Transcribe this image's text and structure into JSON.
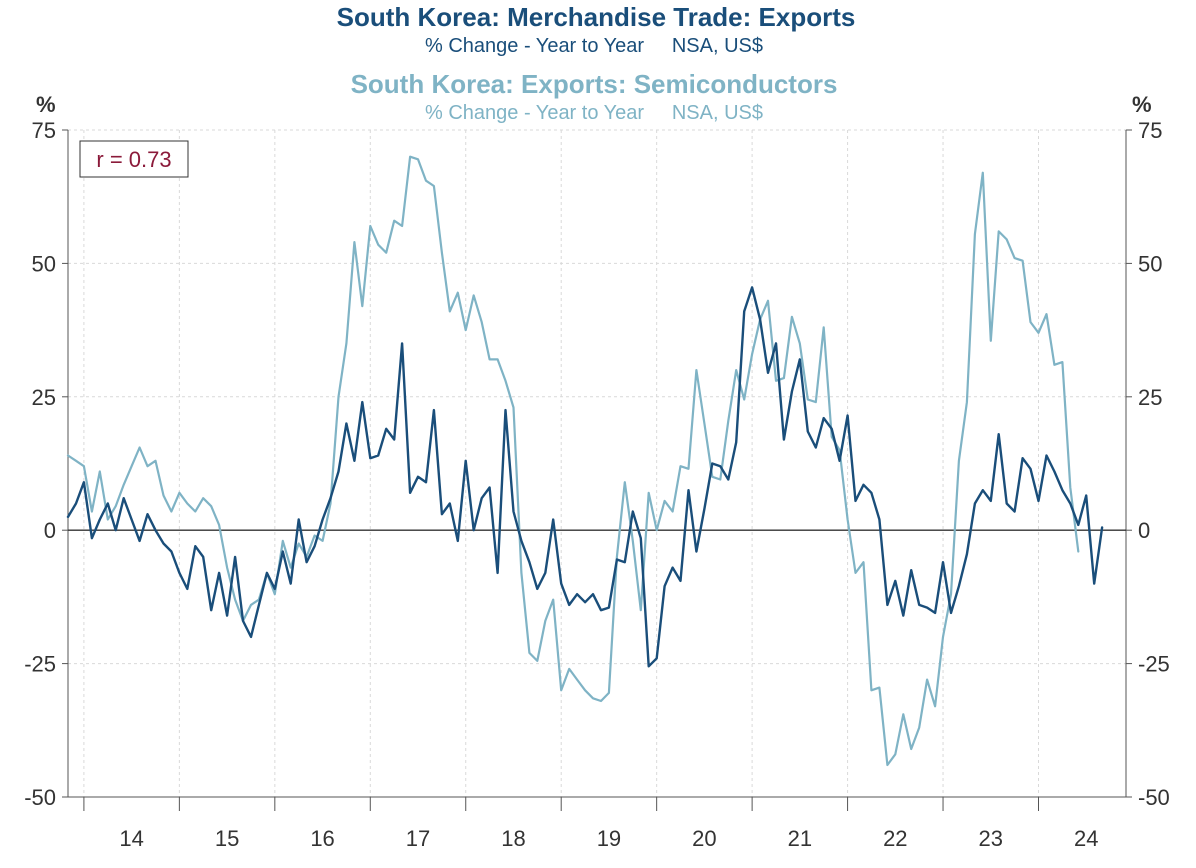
{
  "titles": {
    "main": "South Korea: Merchandise Trade: Exports",
    "main_sub": "% Change - Year to Year     NSA, US$",
    "second": "South Korea: Exports: Semiconductors",
    "second_sub": "% Change - Year to Year     NSA, US$"
  },
  "axes": {
    "left_unit": "%",
    "right_unit": "%"
  },
  "annotation": "r = 0.73",
  "colors": {
    "exports": "#1a4e7a",
    "semiconductors": "#7fb3c5",
    "annotation": "#8b1a3a",
    "zero_line": "#333333",
    "grid": "#d9d9d9"
  },
  "chart_data": {
    "type": "line",
    "x_start": "2013-11",
    "x_frequency": "monthly",
    "xlim": [
      "2013-11",
      "2024-12"
    ],
    "ylim": [
      -50,
      75
    ],
    "yticks": [
      75,
      50,
      25,
      0,
      -25,
      -50
    ],
    "ytick_labels": [
      "75",
      "50",
      "25",
      "0",
      "-25",
      "-50"
    ],
    "xtick_labels": [
      "14",
      "15",
      "16",
      "17",
      "18",
      "19",
      "20",
      "21",
      "22",
      "23",
      "24"
    ],
    "grid": true,
    "series": [
      {
        "name": "South Korea: Merchandise Trade: Exports",
        "axis": "left",
        "color": "#1a4e7a",
        "values": [
          2.5,
          5,
          9,
          -1.5,
          2,
          5,
          0,
          6,
          2,
          -2,
          3,
          0,
          -2.5,
          -4,
          -8,
          -11,
          -3,
          -5,
          -15,
          -8,
          -16,
          -5,
          -17,
          -20,
          -14,
          -8,
          -11,
          -4,
          -10,
          2,
          -6,
          -3,
          2,
          6,
          11,
          20,
          13,
          24,
          13.5,
          14,
          19,
          17,
          35,
          7,
          10,
          9,
          22.5,
          3,
          5,
          -2,
          13,
          0,
          6,
          8,
          -8,
          22.5,
          3.5,
          -2,
          -6,
          -11,
          -8,
          2,
          -10,
          -14,
          -12,
          -13.5,
          -12,
          -15,
          -14.5,
          -5.5,
          -6,
          3.5,
          -1.5,
          -25.5,
          -24,
          -10.5,
          -7,
          -9.5,
          7.5,
          -4,
          4,
          12.5,
          12,
          9.5,
          16.5,
          41,
          45.5,
          39.5,
          29.5,
          35,
          17,
          26,
          32,
          18.5,
          15.5,
          21,
          19,
          13,
          21.5,
          5.5,
          8.5,
          7,
          2,
          -14,
          -9.5,
          -16,
          -7.5,
          -14,
          -14.5,
          -15.5,
          -6,
          -15.5,
          -10.5,
          -4.5,
          5,
          7.5,
          5.5,
          18,
          5,
          3.5,
          13.5,
          11.5,
          5.5,
          14,
          11,
          7.5,
          5,
          1,
          6.5,
          -10,
          0.5
        ]
      },
      {
        "name": "South Korea: Exports: Semiconductors",
        "axis": "right",
        "color": "#7fb3c5",
        "values": [
          14,
          13,
          12,
          3.5,
          11,
          2,
          4.5,
          8.5,
          12,
          15.5,
          12,
          13,
          6.5,
          3.5,
          7,
          5,
          3.5,
          6,
          4.5,
          1,
          -7,
          -13,
          -17,
          -14,
          -13,
          -8,
          -12,
          -2,
          -7,
          -2.5,
          -5,
          -1,
          -2,
          5,
          25,
          35,
          54,
          42,
          57,
          53.5,
          52,
          58,
          57,
          70,
          69.5,
          65.5,
          64.5,
          52,
          41,
          44.5,
          37.5,
          44,
          39,
          32,
          32,
          28,
          23,
          -8,
          -23,
          -24.5,
          -17,
          -13,
          -30,
          -26,
          -28,
          -30,
          -31.5,
          -32,
          -30.5,
          -5,
          9,
          -2,
          -15,
          7,
          0,
          5.5,
          3.5,
          12,
          11.5,
          30,
          20,
          10,
          9.5,
          20.5,
          30,
          24.5,
          33,
          39.5,
          43,
          28,
          28.5,
          40,
          35,
          24.5,
          24,
          38,
          17.5,
          15,
          2,
          -8,
          -6,
          -30,
          -29.5,
          -44,
          -42,
          -34.5,
          -41,
          -37,
          -28,
          -33,
          -20,
          -12,
          13,
          24,
          55.5,
          67,
          35.5,
          56,
          54.5,
          51,
          50.5,
          39,
          37,
          40.5,
          31,
          31.5,
          8,
          -4
        ]
      }
    ]
  }
}
